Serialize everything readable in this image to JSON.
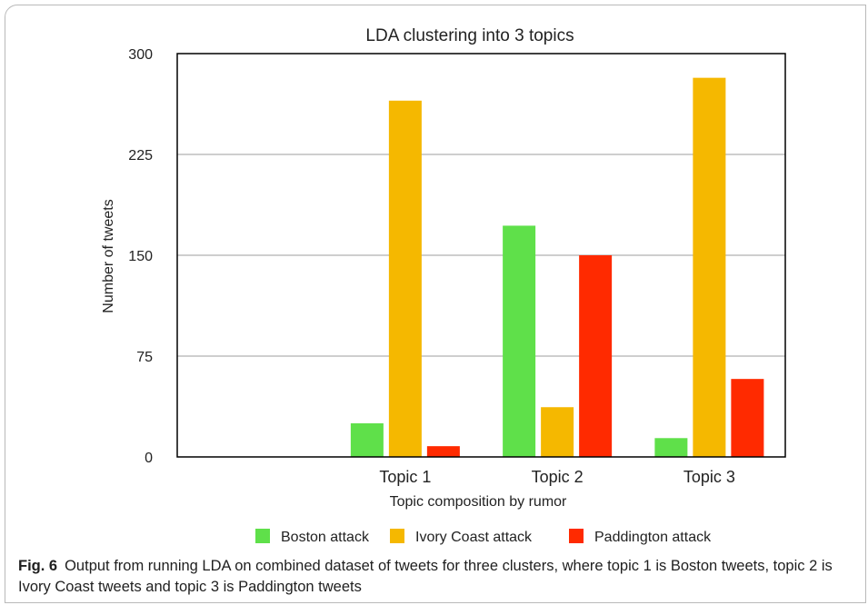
{
  "chart_data": {
    "type": "bar",
    "title": "LDA clustering into 3 topics",
    "xlabel": "Topic composition by rumor",
    "ylabel": "Number of tweets",
    "categories": [
      "",
      "Topic 1",
      "Topic 2",
      "Topic 3"
    ],
    "ylim": [
      0,
      300
    ],
    "yticks": [
      0,
      75,
      150,
      225,
      300
    ],
    "grid": true,
    "legend_position": "bottom",
    "series": [
      {
        "name": "Boston attack",
        "color": "#5fe04a",
        "values": [
          0,
          25,
          172,
          14
        ]
      },
      {
        "name": "Ivory Coast attack",
        "color": "#f5b800",
        "values": [
          0,
          265,
          37,
          282
        ]
      },
      {
        "name": "Paddington attack",
        "color": "#ff2a00",
        "values": [
          0,
          8,
          150,
          58
        ]
      }
    ]
  },
  "caption": {
    "label": "Fig. 6",
    "text": "Output from running LDA on combined dataset of tweets for three clusters, where topic 1 is Boston tweets, topic 2 is Ivory Coast tweets and topic 3 is Paddington tweets"
  }
}
